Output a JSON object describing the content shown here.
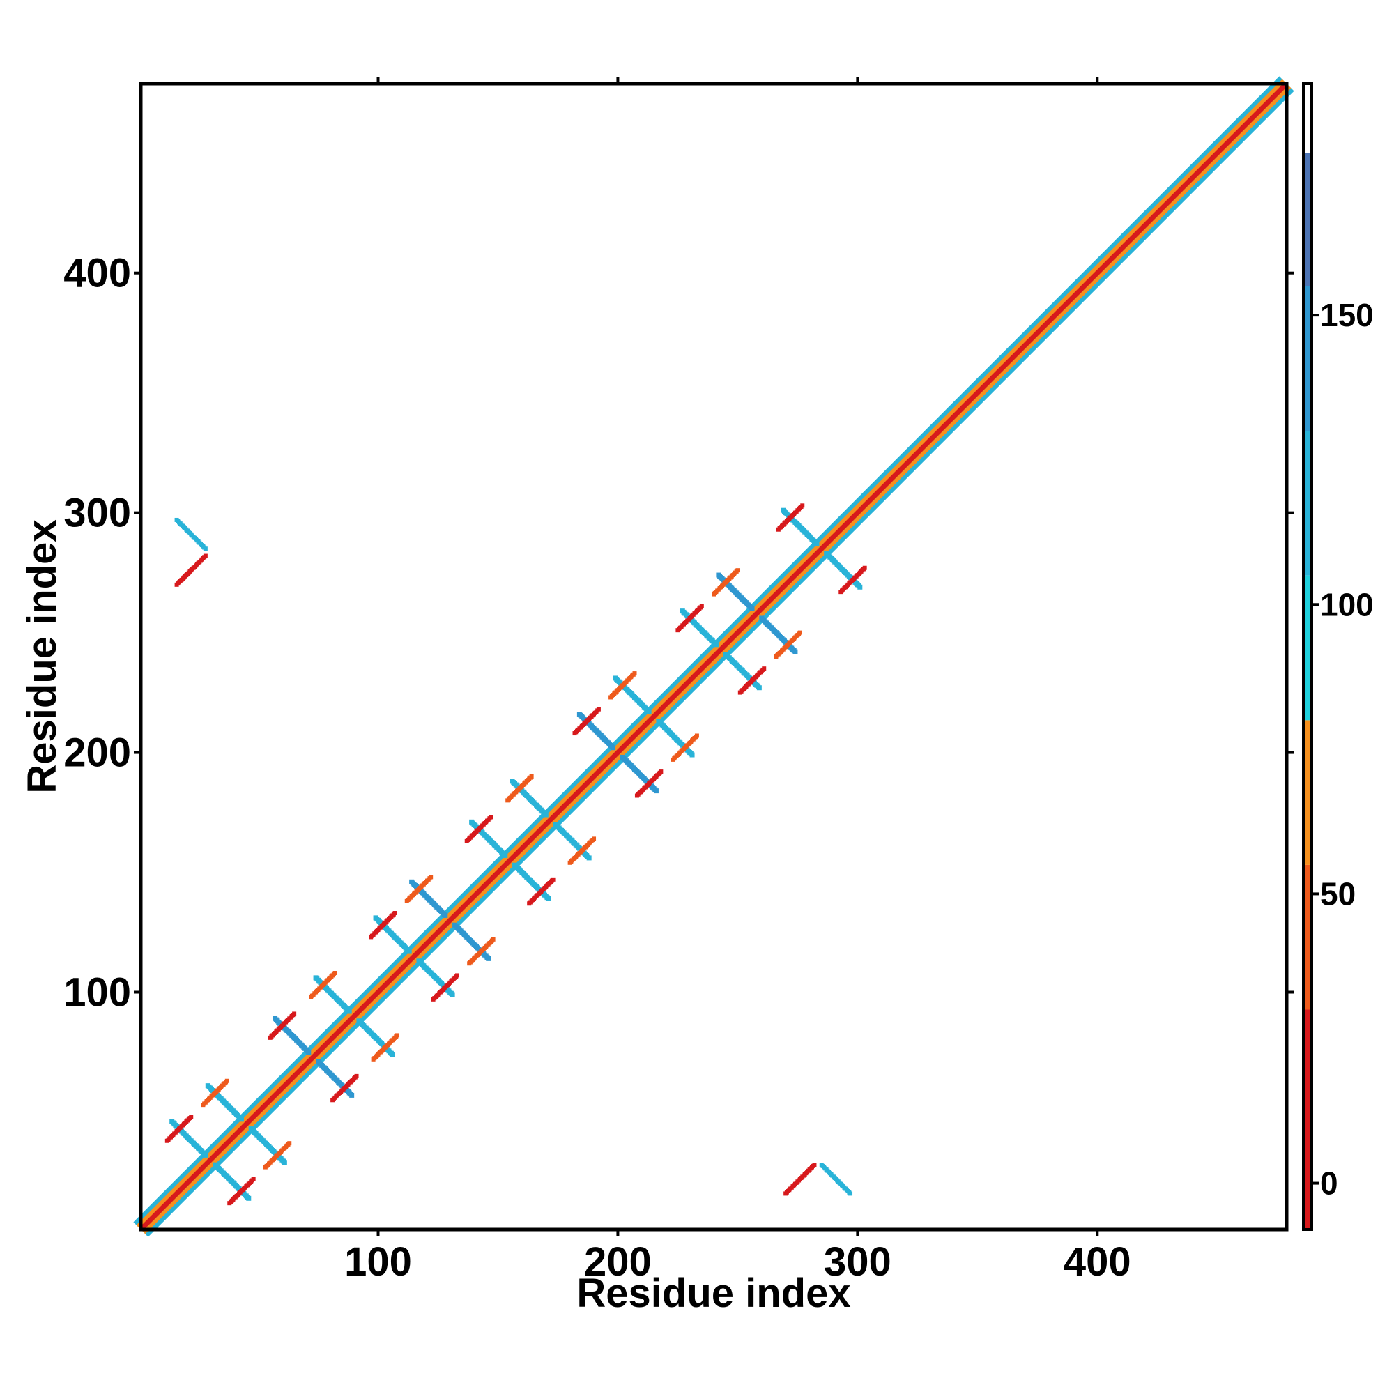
{
  "chart_data": {
    "type": "heatmap",
    "title": "",
    "xlabel": "Residue index",
    "ylabel": "Residue index",
    "xlim": [
      1,
      479
    ],
    "ylim": [
      1,
      479
    ],
    "x_ticks": [
      "100",
      "200",
      "300",
      "400"
    ],
    "y_ticks": [
      "100",
      "200",
      "300",
      "400"
    ],
    "colorbar": {
      "range": [
        -8,
        190
      ],
      "ticks": [
        "0",
        "50",
        "100",
        "150"
      ],
      "bins": [
        {
          "from": -8,
          "to": 30,
          "color": "#d7191c"
        },
        {
          "from": 30,
          "to": 55,
          "color": "#ee5a1c"
        },
        {
          "from": 55,
          "to": 80,
          "color": "#f6901e"
        },
        {
          "from": 80,
          "to": 105,
          "color": "#1fd0dc"
        },
        {
          "from": 105,
          "to": 130,
          "color": "#29b3d8"
        },
        {
          "from": 130,
          "to": 155,
          "color": "#2f97d0"
        },
        {
          "from": 155,
          "to": 178,
          "color": "#4d74b4"
        },
        {
          "from": 178,
          "to": 190,
          "color": "#ffffff"
        }
      ]
    },
    "diagonal": {
      "from": 1,
      "to": 479,
      "color_core": "#d7191c",
      "color_mid": "#f6901e",
      "color_outer": "#29b3d8"
    },
    "repeat_centers": [
      [
        30,
        30
      ],
      [
        45,
        45
      ],
      [
        73,
        73
      ],
      [
        90,
        90
      ],
      [
        115,
        115
      ],
      [
        130,
        130
      ],
      [
        155,
        155
      ],
      [
        172,
        172
      ],
      [
        200,
        200
      ],
      [
        215,
        215
      ],
      [
        243,
        243
      ],
      [
        258,
        258
      ],
      [
        285,
        285
      ]
    ],
    "long_range_contacts": [
      {
        "x": 22,
        "y": 291,
        "value": 120
      },
      {
        "x": 22,
        "y": 276,
        "value": 10
      },
      {
        "x": 291,
        "y": 22,
        "value": 120
      },
      {
        "x": 276,
        "y": 22,
        "value": 10
      }
    ]
  }
}
